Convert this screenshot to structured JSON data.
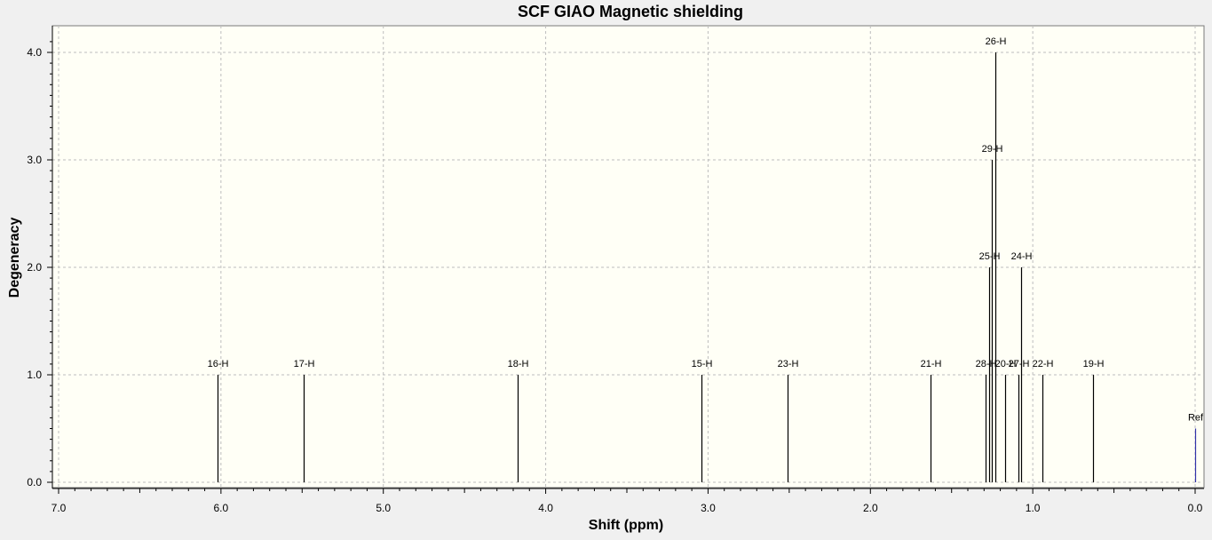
{
  "chart_data": {
    "type": "stick",
    "title": "SCF GIAO Magnetic shielding",
    "xlabel": "Shift (ppm)",
    "ylabel": "Degeneracy",
    "xlim": [
      7.0,
      0.0
    ],
    "x_reversed": true,
    "ylim": [
      0.0,
      4.2
    ],
    "x_ticks": [
      "7.0",
      "6.0",
      "5.0",
      "4.0",
      "3.0",
      "2.0",
      "1.0",
      "0.0"
    ],
    "y_ticks": [
      "0.0",
      "1.0",
      "2.0",
      "3.0",
      "4.0"
    ],
    "grid": true,
    "colors": {
      "plot_bg": "#fffff6",
      "page_bg": "#f0f0f0",
      "stick": "#000000",
      "ref": "#3333aa",
      "grid": "#bdbdbd"
    },
    "peaks": [
      {
        "label": "16-H",
        "x": 6.02,
        "y": 1
      },
      {
        "label": "17-H",
        "x": 5.49,
        "y": 1
      },
      {
        "label": "18-H",
        "x": 4.17,
        "y": 1
      },
      {
        "label": "15-H",
        "x": 3.04,
        "y": 1
      },
      {
        "label": "23-H",
        "x": 2.51,
        "y": 1
      },
      {
        "label": "21-H",
        "x": 1.63,
        "y": 1
      },
      {
        "label": "28-H",
        "x": 1.29,
        "y": 1
      },
      {
        "label": "25-H",
        "x": 1.27,
        "y": 2
      },
      {
        "label": "29-H",
        "x": 1.25,
        "y": 3
      },
      {
        "label": "26-H",
        "x": 1.23,
        "y": 4
      },
      {
        "label": "20-H",
        "x": 1.17,
        "y": 1
      },
      {
        "label": "27-H",
        "x": 1.09,
        "y": 1
      },
      {
        "label": "24-H",
        "x": 1.07,
        "y": 2
      },
      {
        "label": "22-H",
        "x": 0.94,
        "y": 1
      },
      {
        "label": "19-H",
        "x": 0.63,
        "y": 1
      },
      {
        "label": "Ref",
        "x": 0.0,
        "y": 0.5,
        "ref": true
      }
    ]
  }
}
